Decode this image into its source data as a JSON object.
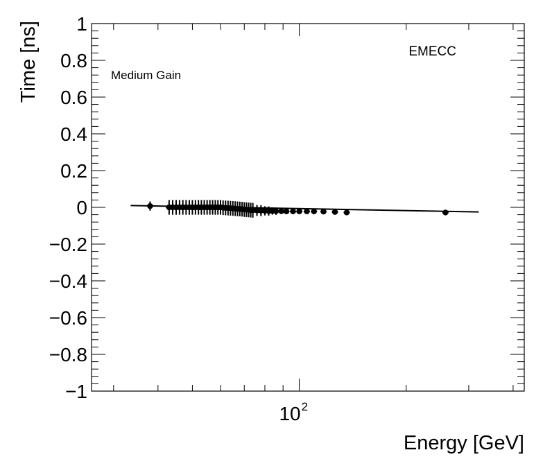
{
  "chart_data": {
    "type": "scatter",
    "xlabel": "Energy [GeV]",
    "ylabel": "Time [ns]",
    "x_scale": "log",
    "xlim": [
      26,
      430
    ],
    "ylim": [
      -1,
      1
    ],
    "y_ticks": [
      {
        "value": -1,
        "label": "−1"
      },
      {
        "value": -0.8,
        "label": "−0.8"
      },
      {
        "value": -0.6,
        "label": "−0.6"
      },
      {
        "value": -0.4,
        "label": "−0.4"
      },
      {
        "value": -0.2,
        "label": "−0.2"
      },
      {
        "value": 0,
        "label": "0"
      },
      {
        "value": 0.2,
        "label": "0.2"
      },
      {
        "value": 0.4,
        "label": "0.4"
      },
      {
        "value": 0.6,
        "label": "0.6"
      },
      {
        "value": 0.8,
        "label": "0.8"
      },
      {
        "value": 1,
        "label": "1"
      }
    ],
    "x_tick_label": {
      "base": "10",
      "exponent": "2",
      "value": 100
    },
    "annotations": {
      "left": "Medium Gain",
      "right": "EMECC"
    },
    "grid": false,
    "marker_color": "#000000",
    "fit_line": {
      "x": [
        33.5,
        320
      ],
      "y": [
        0.01,
        -0.025
      ]
    },
    "points": [
      {
        "x": 38.0,
        "y": 0.007,
        "err": 0.025
      },
      {
        "x": 43.0,
        "y": 0.0,
        "err": 0.04
      },
      {
        "x": 44.0,
        "y": 0.0,
        "err": 0.04
      },
      {
        "x": 45.0,
        "y": 0.0,
        "err": 0.04
      },
      {
        "x": 46.0,
        "y": 0.0,
        "err": 0.04
      },
      {
        "x": 47.0,
        "y": 0.0,
        "err": 0.04
      },
      {
        "x": 48.0,
        "y": 0.0,
        "err": 0.04
      },
      {
        "x": 49.0,
        "y": 0.0,
        "err": 0.04
      },
      {
        "x": 50.0,
        "y": 0.0,
        "err": 0.04
      },
      {
        "x": 51.0,
        "y": 0.0,
        "err": 0.04
      },
      {
        "x": 52.0,
        "y": 0.0,
        "err": 0.04
      },
      {
        "x": 53.0,
        "y": 0.0,
        "err": 0.04
      },
      {
        "x": 54.0,
        "y": 0.0,
        "err": 0.04
      },
      {
        "x": 55.0,
        "y": 0.0,
        "err": 0.04
      },
      {
        "x": 56.0,
        "y": 0.0,
        "err": 0.04
      },
      {
        "x": 57.0,
        "y": 0.0,
        "err": 0.04
      },
      {
        "x": 58.0,
        "y": 0.0,
        "err": 0.04
      },
      {
        "x": 59.0,
        "y": 0.0,
        "err": 0.04
      },
      {
        "x": 60.0,
        "y": 0.0,
        "err": 0.04
      },
      {
        "x": 61.0,
        "y": -0.002,
        "err": 0.04
      },
      {
        "x": 62.0,
        "y": -0.003,
        "err": 0.04
      },
      {
        "x": 63.0,
        "y": -0.004,
        "err": 0.04
      },
      {
        "x": 64.0,
        "y": -0.005,
        "err": 0.04
      },
      {
        "x": 65.0,
        "y": -0.006,
        "err": 0.04
      },
      {
        "x": 66.0,
        "y": -0.007,
        "err": 0.04
      },
      {
        "x": 67.0,
        "y": -0.008,
        "err": 0.04
      },
      {
        "x": 68.0,
        "y": -0.009,
        "err": 0.04
      },
      {
        "x": 69.0,
        "y": -0.01,
        "err": 0.04
      },
      {
        "x": 70.0,
        "y": -0.012,
        "err": 0.04
      },
      {
        "x": 71.0,
        "y": -0.013,
        "err": 0.04
      },
      {
        "x": 72.0,
        "y": -0.014,
        "err": 0.04
      },
      {
        "x": 73.0,
        "y": -0.015,
        "err": 0.04
      },
      {
        "x": 74.0,
        "y": -0.016,
        "err": 0.04
      },
      {
        "x": 76.0,
        "y": -0.017,
        "err": 0.03
      },
      {
        "x": 78.0,
        "y": -0.018,
        "err": 0.03
      },
      {
        "x": 80.0,
        "y": -0.019,
        "err": 0.025
      },
      {
        "x": 82.0,
        "y": -0.02,
        "err": 0.025
      },
      {
        "x": 84.0,
        "y": -0.02,
        "err": 0.02
      },
      {
        "x": 86.0,
        "y": -0.021,
        "err": 0.02
      },
      {
        "x": 89.0,
        "y": -0.021,
        "err": 0.015
      },
      {
        "x": 92.0,
        "y": -0.022,
        "err": 0.012
      },
      {
        "x": 96.0,
        "y": -0.022,
        "err": 0.01
      },
      {
        "x": 100.0,
        "y": -0.022,
        "err": 0.008
      },
      {
        "x": 105.0,
        "y": -0.022,
        "err": 0.005
      },
      {
        "x": 110.0,
        "y": -0.022,
        "err": 0.004
      },
      {
        "x": 117.0,
        "y": -0.023,
        "err": 0.004
      },
      {
        "x": 126.0,
        "y": -0.025,
        "err": 0.004
      },
      {
        "x": 136.0,
        "y": -0.028,
        "err": 0.004
      },
      {
        "x": 258.0,
        "y": -0.028,
        "err": 0.004
      }
    ]
  }
}
